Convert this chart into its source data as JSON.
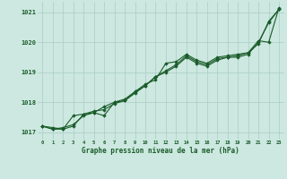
{
  "title": "Graphe pression niveau de la mer (hPa)",
  "background_color": "#cce8e0",
  "grid_color": "#aaccc4",
  "line_color": "#1a5c2a",
  "x_values": [
    0,
    1,
    2,
    3,
    4,
    5,
    6,
    7,
    8,
    9,
    10,
    11,
    12,
    13,
    14,
    15,
    16,
    17,
    18,
    19,
    20,
    21,
    22,
    23
  ],
  "series1": [
    1017.2,
    1017.1,
    1017.15,
    1017.25,
    1017.55,
    1017.65,
    1017.55,
    1018.0,
    1018.05,
    1018.35,
    1018.55,
    1018.85,
    1019.05,
    1019.25,
    1019.55,
    1019.35,
    1019.25,
    1019.45,
    1019.5,
    1019.55,
    1019.65,
    1019.95,
    1020.7,
    1021.1
  ],
  "series2": [
    1017.2,
    1017.15,
    1017.1,
    1017.2,
    1017.6,
    1017.7,
    1017.75,
    1017.95,
    1018.05,
    1018.3,
    1018.55,
    1018.85,
    1019.0,
    1019.2,
    1019.5,
    1019.3,
    1019.2,
    1019.4,
    1019.5,
    1019.5,
    1019.6,
    1020.0,
    1020.65,
    1021.1
  ],
  "series3": [
    1017.2,
    1017.1,
    1017.1,
    1017.55,
    1017.6,
    1017.65,
    1017.85,
    1018.0,
    1018.1,
    1018.35,
    1018.6,
    1018.75,
    1019.3,
    1019.35,
    1019.6,
    1019.4,
    1019.3,
    1019.5,
    1019.55,
    1019.6,
    1019.65,
    1020.05,
    1020.0,
    1021.15
  ],
  "ylim_min": 1016.75,
  "ylim_max": 1021.35,
  "yticks": [
    1017,
    1018,
    1019,
    1020,
    1021
  ],
  "ytick_labels": [
    "1017",
    "1018",
    "1019",
    "1020",
    "1021"
  ]
}
